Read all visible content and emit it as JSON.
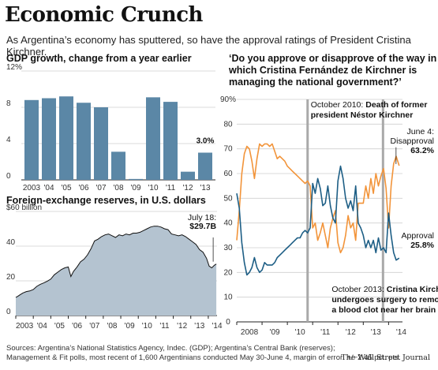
{
  "header": {
    "title": "Economic Crunch",
    "subtitle": "As Argentina’s economy has sputtered, so have the approval ratings of President Cristina Kirchner."
  },
  "footer": {
    "sources_line1": "Sources: Argentina’s National Statistics Agency, Indec. (GDP); Argentina’s Central Bank (reserves);",
    "sources_line2": "Management & Fit polls, most recent of 1,600 Argentinians conducted May 30-June 4, margin of error: +/−2.45 pct. pts.",
    "credit": "The Wall Street Journal"
  },
  "chart_data": [
    {
      "type": "bar",
      "title": "GDP growth, change from a year earlier",
      "categories": [
        "2003",
        "'04",
        "'05",
        "'06",
        "'07",
        "'08",
        "'09",
        "'10",
        "'11",
        "'12",
        "'13"
      ],
      "values": [
        8.8,
        9.0,
        9.2,
        8.5,
        8.0,
        3.1,
        0.1,
        9.1,
        8.6,
        0.9,
        3.0
      ],
      "ylim": [
        0,
        12
      ],
      "yticks": [
        "12%",
        "8",
        "4",
        "0"
      ],
      "data_label": {
        "category": "'13",
        "text": "3.0%"
      },
      "bar_color": "#5b87a6",
      "grid": true
    },
    {
      "type": "area",
      "title": "Foreign-exchange reserves, in U.S. dollars",
      "x": [
        2003.0,
        2003.1,
        2003.25,
        2003.4,
        2003.6,
        2003.8,
        2004.0,
        2004.2,
        2004.4,
        2004.6,
        2004.8,
        2005.0,
        2005.2,
        2005.4,
        2005.6,
        2005.8,
        2006.0,
        2006.15,
        2006.3,
        2006.5,
        2006.7,
        2006.9,
        2007.1,
        2007.3,
        2007.5,
        2007.7,
        2007.9,
        2008.1,
        2008.3,
        2008.5,
        2008.7,
        2008.9,
        2009.1,
        2009.3,
        2009.5,
        2009.7,
        2009.9,
        2010.1,
        2010.3,
        2010.5,
        2010.7,
        2010.9,
        2011.1,
        2011.3,
        2011.5,
        2011.7,
        2011.9,
        2012.1,
        2012.3,
        2012.5,
        2012.7,
        2012.9,
        2013.1,
        2013.3,
        2013.5,
        2013.7,
        2013.9,
        2014.05,
        2014.2,
        2014.35,
        2014.46
      ],
      "values": [
        10.5,
        11.0,
        12.0,
        13.0,
        13.8,
        14.2,
        15.0,
        16.8,
        18.0,
        18.8,
        19.8,
        21.0,
        23.5,
        25.0,
        26.5,
        27.5,
        28.0,
        22.5,
        25.5,
        28.0,
        31.0,
        32.5,
        35.0,
        38.5,
        43.0,
        44.0,
        45.5,
        46.5,
        47.0,
        46.0,
        45.0,
        46.5,
        46.0,
        47.0,
        46.5,
        47.5,
        47.5,
        48.0,
        49.0,
        50.0,
        51.0,
        51.5,
        51.5,
        51.0,
        50.0,
        49.5,
        47.0,
        46.5,
        46.0,
        46.5,
        45.5,
        44.0,
        42.5,
        41.0,
        38.0,
        36.5,
        33.0,
        28.5,
        27.5,
        29.0,
        29.7
      ],
      "ylim": [
        0,
        60
      ],
      "yticks": [
        "$60 billion",
        "40",
        "20",
        "0"
      ],
      "xticks": [
        "2003",
        "'04",
        "'05",
        "'06",
        "'07",
        "'08",
        "'09",
        "'10",
        "'11",
        "'12",
        "'13",
        "'14"
      ],
      "annotation": {
        "date": "July 18:",
        "value": "$29.7B"
      },
      "fill": "#b4c3d0",
      "line": "#111111"
    },
    {
      "type": "line",
      "title": "‘Do you approve or disapprove of the way in which Cristina Fernández de Kirchner is managing the national government?’",
      "ylim": [
        0,
        90
      ],
      "yticks": [
        "90%",
        "80",
        "70",
        "60",
        "50",
        "40",
        "30",
        "20",
        "10",
        "0"
      ],
      "xticks": [
        "2008",
        "'09",
        "'10",
        "'11",
        "'12",
        "'13",
        "'14"
      ],
      "series": [
        {
          "name": "Disapproval",
          "color": "#f2943a",
          "x": [
            2008.0,
            2008.1,
            2008.2,
            2008.3,
            2008.4,
            2008.5,
            2008.6,
            2008.7,
            2008.8,
            2008.9,
            2009.0,
            2009.1,
            2009.2,
            2009.3,
            2009.4,
            2009.5,
            2009.6,
            2009.7,
            2009.8,
            2009.9,
            2010.0,
            2010.1,
            2010.2,
            2010.3,
            2010.4,
            2010.5,
            2010.6,
            2010.7,
            2010.8,
            2010.9,
            2011.0,
            2011.1,
            2011.2,
            2011.3,
            2011.4,
            2011.5,
            2011.6,
            2011.7,
            2011.8,
            2011.9,
            2012.0,
            2012.1,
            2012.2,
            2012.3,
            2012.4,
            2012.5,
            2012.6,
            2012.7,
            2012.8,
            2012.9,
            2013.0,
            2013.1,
            2013.2,
            2013.3,
            2013.4,
            2013.5,
            2013.6,
            2013.7,
            2013.8,
            2013.9,
            2014.0,
            2014.1,
            2014.2,
            2014.3,
            2014.42
          ],
          "values": [
            33,
            45,
            60,
            68,
            71,
            70,
            65,
            58,
            66,
            72,
            71,
            72,
            72,
            71,
            72,
            69,
            66,
            67,
            66,
            65,
            63,
            62,
            61,
            60,
            59,
            58,
            57,
            56,
            57,
            55,
            38,
            40,
            33,
            36,
            40,
            35,
            30,
            38,
            42,
            45,
            32,
            28,
            30,
            35,
            43,
            38,
            40,
            33,
            48,
            48,
            48,
            55,
            50,
            58,
            52,
            60,
            55,
            59,
            62,
            54,
            38,
            55,
            64,
            67,
            63.2
          ]
        },
        {
          "name": "Approval",
          "color": "#1d5e85",
          "x": [
            2008.0,
            2008.1,
            2008.2,
            2008.3,
            2008.4,
            2008.5,
            2008.6,
            2008.7,
            2008.8,
            2008.9,
            2009.0,
            2009.1,
            2009.2,
            2009.3,
            2009.4,
            2009.5,
            2009.6,
            2009.7,
            2009.8,
            2009.9,
            2010.0,
            2010.1,
            2010.2,
            2010.3,
            2010.4,
            2010.5,
            2010.6,
            2010.7,
            2010.8,
            2010.9,
            2011.0,
            2011.1,
            2011.2,
            2011.3,
            2011.4,
            2011.5,
            2011.6,
            2011.7,
            2011.8,
            2011.9,
            2012.0,
            2012.1,
            2012.2,
            2012.3,
            2012.4,
            2012.5,
            2012.6,
            2012.7,
            2012.8,
            2012.9,
            2013.0,
            2013.1,
            2013.2,
            2013.3,
            2013.4,
            2013.5,
            2013.6,
            2013.7,
            2013.8,
            2013.9,
            2014.0,
            2014.1,
            2014.2,
            2014.3,
            2014.42
          ],
          "values": [
            52,
            46,
            32,
            24,
            19,
            20,
            22,
            26,
            22,
            20,
            21,
            24,
            23,
            23,
            23,
            24,
            26,
            27,
            28,
            29,
            30,
            31,
            32,
            33,
            34,
            34,
            36,
            37,
            36,
            38,
            56,
            52,
            58,
            54,
            47,
            48,
            55,
            47,
            42,
            40,
            57,
            63,
            58,
            50,
            46,
            49,
            45,
            55,
            40,
            38,
            35,
            30,
            33,
            30,
            33,
            28,
            34,
            29,
            30,
            28,
            44,
            35,
            28,
            25,
            25.8
          ]
        }
      ],
      "events": [
        {
          "x": 2010.8,
          "label_bold": "Death of former president Néstor Kirchner",
          "label_date": "October 2010:"
        },
        {
          "x": 2013.78,
          "label_bold": "Cristina Kirchner undergoes surgery to remove a blood clot near her brain",
          "label_date": "October 2013:"
        }
      ],
      "annotations": {
        "disapproval": {
          "date": "June 4:",
          "name": "Disapproval",
          "value": "63.2%"
        },
        "approval": {
          "name": "Approval",
          "value": "25.8%"
        }
      }
    }
  ],
  "panel_titles": {
    "gdp": "GDP growth, change from a year earlier",
    "reserves": "Foreign-exchange reserves, in U.S. dollars",
    "poll_line1": "‘Do you approve or disapprove of the way in",
    "poll_line2": "which Cristina Fernández de Kirchner is",
    "poll_line3": "managing the national government?’"
  },
  "event_text": {
    "oct2010_l1_date": "October 2010:",
    "oct2010_l1_bold": "Death of former",
    "oct2010_l2": "president Néstor Kirchner",
    "oct2013_l1_date": "October 2013:",
    "oct2013_l1_bold": "Cristina Kirchner",
    "oct2013_l2": "undergoes surgery to remove",
    "oct2013_l3": "a blood clot near her brain"
  }
}
